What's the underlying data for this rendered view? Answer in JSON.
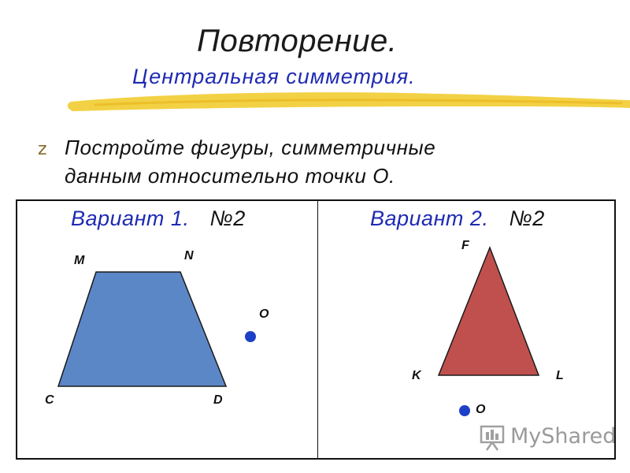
{
  "header": {
    "title": "Повторение.",
    "subtitle": "Центральная симметрия."
  },
  "task": {
    "bullet": "z",
    "line1": "Постройте  фигуры, симметричные",
    "line2": "данным  относительно  точки О."
  },
  "variant1": {
    "label": "Вариант 1.",
    "number": "№2",
    "points": {
      "M": "M",
      "N": "N",
      "C": "C",
      "D": "D",
      "O": "O"
    },
    "figure_color": "#5b87c7",
    "figure": "trapezoid-icon"
  },
  "variant2": {
    "label": "Вариант 2.",
    "number": "№2",
    "points": {
      "F": "F",
      "K": "K",
      "L": "L",
      "O": "O"
    },
    "figure_color": "#c0504d",
    "figure": "triangle-icon"
  },
  "point_color": "#1e40c8",
  "watermark": {
    "text": "MyShared",
    "icon": "presentation-board-icon"
  }
}
